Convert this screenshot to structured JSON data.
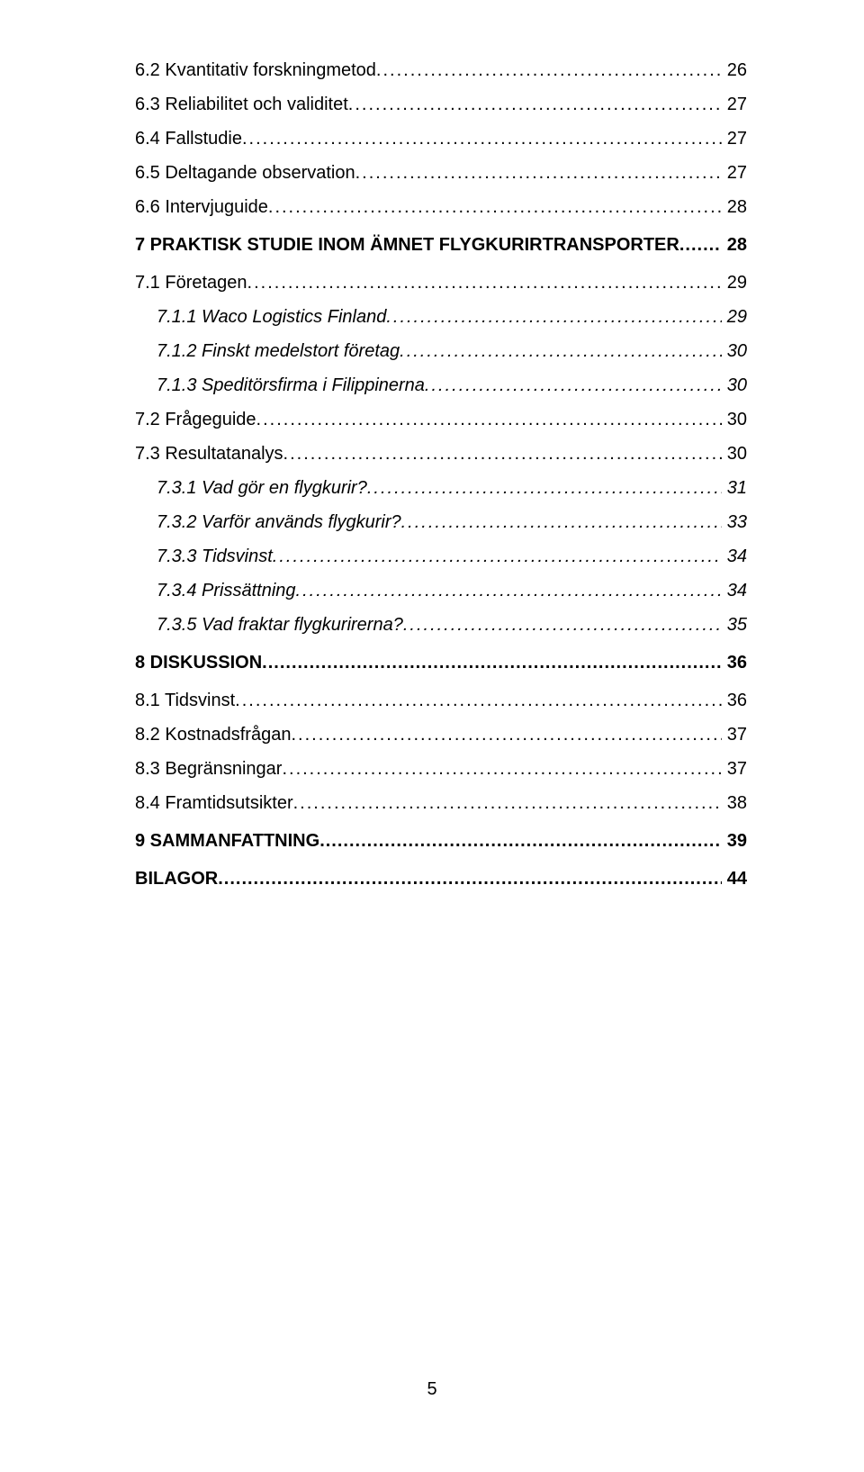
{
  "page_number": "5",
  "toc": [
    {
      "level": 2,
      "label": "6.2 Kvantitativ forskningmetod",
      "page": "26"
    },
    {
      "level": 2,
      "label": "6.3 Reliabilitet och validitet",
      "page": "27"
    },
    {
      "level": 2,
      "label": "6.4 Fallstudie",
      "page": "27"
    },
    {
      "level": 2,
      "label": "6.5 Deltagande observation",
      "page": "27"
    },
    {
      "level": 2,
      "label": "6.6 Intervjuguide",
      "page": "28"
    },
    {
      "level": 1,
      "label": "7 PRAKTISK STUDIE INOM ÄMNET FLYGKURIRTRANSPORTER",
      "page": "28"
    },
    {
      "level": 2,
      "label": "7.1 Företagen",
      "page": "29"
    },
    {
      "level": 3,
      "label": "7.1.1 Waco Logistics Finland",
      "page": "29"
    },
    {
      "level": 3,
      "label": "7.1.2 Finskt medelstort företag",
      "page": "30"
    },
    {
      "level": 3,
      "label": "7.1.3 Speditörsfirma i Filippinerna",
      "page": "30"
    },
    {
      "level": 2,
      "label": "7.2 Frågeguide",
      "page": "30"
    },
    {
      "level": 2,
      "label": "7.3 Resultatanalys",
      "page": "30"
    },
    {
      "level": 3,
      "label": "7.3.1 Vad gör en flygkurir?",
      "page": "31"
    },
    {
      "level": 3,
      "label": "7.3.2 Varför används flygkurir?",
      "page": "33"
    },
    {
      "level": 3,
      "label": "7.3.3 Tidsvinst",
      "page": "34"
    },
    {
      "level": 3,
      "label": "7.3.4 Prissättning",
      "page": "34"
    },
    {
      "level": 3,
      "label": "7.3.5 Vad fraktar flygkurirerna?",
      "page": "35"
    },
    {
      "level": 1,
      "label": "8 DISKUSSION",
      "page": "36"
    },
    {
      "level": 2,
      "label": "8.1 Tidsvinst",
      "page": "36"
    },
    {
      "level": 2,
      "label": "8.2 Kostnadsfrågan",
      "page": "37"
    },
    {
      "level": 2,
      "label": "8.3 Begränsningar",
      "page": "37"
    },
    {
      "level": 2,
      "label": "8.4 Framtidsutsikter",
      "page": "38"
    },
    {
      "level": 1,
      "label": "9 SAMMANFATTNING",
      "page": "39"
    },
    {
      "level": 1,
      "label": "BILAGOR",
      "page": "44"
    }
  ]
}
